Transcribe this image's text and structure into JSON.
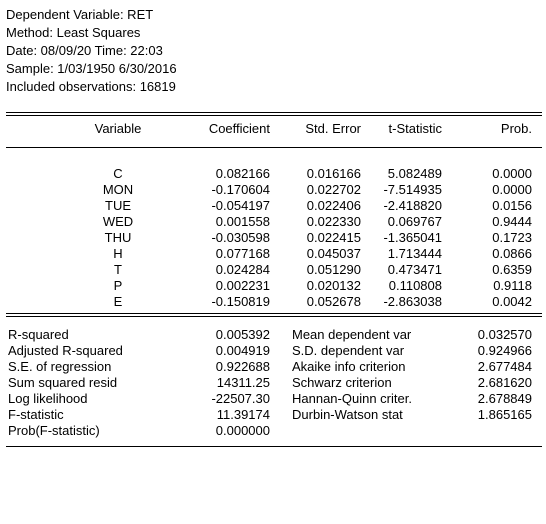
{
  "header": {
    "dependent_variable": "Dependent Variable: RET",
    "method": "Method: Least Squares",
    "date_time": "Date: 08/09/20   Time: 22:03",
    "sample": "Sample: 1/03/1950 6/30/2016",
    "observations": "Included observations: 16819"
  },
  "columns": [
    "Variable",
    "Coefficient",
    "Std. Error",
    "t-Statistic",
    "Prob."
  ],
  "rows": [
    {
      "variable": "C",
      "coefficient": "0.082166",
      "std_error": "0.016166",
      "t_statistic": "5.082489",
      "prob": "0.0000"
    },
    {
      "variable": "MON",
      "coefficient": "-0.170604",
      "std_error": "0.022702",
      "t_statistic": "-7.514935",
      "prob": "0.0000"
    },
    {
      "variable": "TUE",
      "coefficient": "-0.054197",
      "std_error": "0.022406",
      "t_statistic": "-2.418820",
      "prob": "0.0156"
    },
    {
      "variable": "WED",
      "coefficient": "0.001558",
      "std_error": "0.022330",
      "t_statistic": "0.069767",
      "prob": "0.9444"
    },
    {
      "variable": "THU",
      "coefficient": "-0.030598",
      "std_error": "0.022415",
      "t_statistic": "-1.365041",
      "prob": "0.1723"
    },
    {
      "variable": "H",
      "coefficient": "0.077168",
      "std_error": "0.045037",
      "t_statistic": "1.713444",
      "prob": "0.0866"
    },
    {
      "variable": "T",
      "coefficient": "0.024284",
      "std_error": "0.051290",
      "t_statistic": "0.473471",
      "prob": "0.6359"
    },
    {
      "variable": "P",
      "coefficient": "0.002231",
      "std_error": "0.020132",
      "t_statistic": "0.110808",
      "prob": "0.9118"
    },
    {
      "variable": "E",
      "coefficient": "-0.150819",
      "std_error": "0.052678",
      "t_statistic": "-2.863038",
      "prob": "0.0042"
    }
  ],
  "stats": [
    {
      "label": "R-squared",
      "value": "0.005392",
      "label2": "Mean dependent var",
      "value2": "0.032570"
    },
    {
      "label": "Adjusted R-squared",
      "value": "0.004919",
      "label2": "S.D. dependent var",
      "value2": "0.924966"
    },
    {
      "label": "S.E. of regression",
      "value": "0.922688",
      "label2": "Akaike info criterion",
      "value2": "2.677484"
    },
    {
      "label": "Sum squared resid",
      "value": "14311.25",
      "label2": "Schwarz criterion",
      "value2": "2.681620"
    },
    {
      "label": "Log likelihood",
      "value": "-22507.30",
      "label2": "Hannan-Quinn criter.",
      "value2": "2.678849"
    },
    {
      "label": "F-statistic",
      "value": "11.39174",
      "label2": "Durbin-Watson stat",
      "value2": "1.865165"
    },
    {
      "label": "Prob(F-statistic)",
      "value": "0.000000",
      "label2": "",
      "value2": ""
    }
  ]
}
